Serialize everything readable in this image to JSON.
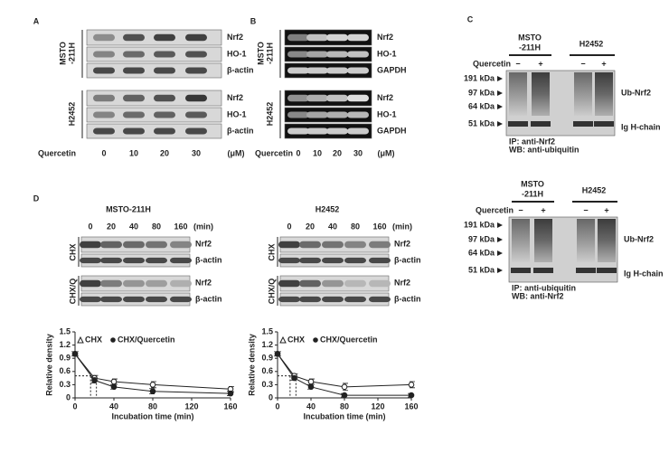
{
  "panel_a": {
    "label": "A",
    "groups": [
      {
        "cell_line": [
          "MSTO",
          "-211H"
        ],
        "bands": [
          "Nrf2",
          "HO-1",
          "β-actin"
        ]
      },
      {
        "cell_line": [
          "H2452"
        ],
        "bands": [
          "Nrf2",
          "HO-1",
          "β-actin"
        ]
      }
    ],
    "treatment": "Quercetin",
    "doses": [
      0,
      10,
      20,
      30
    ],
    "unit": "(μM)"
  },
  "panel_b": {
    "label": "B",
    "groups": [
      {
        "cell_line": [
          "MSTO",
          "-211H"
        ],
        "bands": [
          "Nrf2",
          "HO-1",
          "GAPDH"
        ]
      },
      {
        "cell_line": [
          "H2452"
        ],
        "bands": [
          "Nrf2",
          "HO-1",
          "GAPDH"
        ]
      }
    ],
    "treatment": "Quercetin",
    "doses": [
      0,
      10,
      20,
      30
    ],
    "unit": "(μM)"
  },
  "panel_c": {
    "label": "C",
    "blots": [
      {
        "cell_lines": [
          [
            "MSTO",
            "-211H"
          ],
          [
            "H2452"
          ]
        ],
        "treatment": "Quercetin",
        "signs": [
          "−",
          "+",
          "−",
          "+"
        ],
        "markers": [
          "191 kDa",
          "97 kDa",
          "64 kDa",
          "51 kDa"
        ],
        "bands": [
          "Ub-Nrf2",
          "Ig H-chain"
        ],
        "ip": "IP: anti-Nrf2",
        "wb": "WB: anti-ubiquitin"
      },
      {
        "cell_lines": [
          [
            "MSTO",
            "-211H"
          ],
          [
            "H2452"
          ]
        ],
        "treatment": "Quercetin",
        "signs": [
          "−",
          "+",
          "−",
          "+"
        ],
        "markers": [
          "191 kDa",
          "97 kDa",
          "64 kDa",
          "51 kDa"
        ],
        "bands": [
          "Ub-Nrf2",
          "Ig H-chain"
        ],
        "ip": "IP: anti-ubiquitin",
        "wb": "WB: anti-Nrf2"
      }
    ]
  },
  "panel_d": {
    "label": "D",
    "columns": [
      {
        "title": "MSTO-211H",
        "times": [
          0,
          20,
          40,
          80,
          160
        ],
        "unit": "(min)",
        "treatments": [
          "CHX",
          "CHX/Q"
        ],
        "bands": [
          "Nrf2",
          "β-actin"
        ]
      },
      {
        "title": "H2452",
        "times": [
          0,
          20,
          40,
          80,
          160
        ],
        "unit": "(min)",
        "treatments": [
          "CHX",
          "CHX/Q"
        ],
        "bands": [
          "Nrf2",
          "β-actin"
        ]
      }
    ]
  },
  "chart_data": [
    {
      "type": "line",
      "x": [
        0,
        20,
        40,
        80,
        160
      ],
      "series": [
        {
          "name": "CHX",
          "color": "#222222",
          "marker": "open",
          "values": [
            1.0,
            0.45,
            0.37,
            0.3,
            0.2
          ],
          "errors": [
            0.05,
            0.06,
            0.06,
            0.07,
            0.06
          ]
        },
        {
          "name": "CHX/Quercetin",
          "color": "#222222",
          "marker": "filled",
          "values": [
            1.0,
            0.4,
            0.25,
            0.15,
            0.1
          ],
          "errors": [
            0.05,
            0.06,
            0.05,
            0.06,
            0.05
          ]
        }
      ],
      "xlim": [
        0,
        160
      ],
      "ylim": [
        0,
        1.5
      ],
      "xticks": [
        0,
        40,
        80,
        120,
        160
      ],
      "yticks": [
        0,
        0.3,
        0.6,
        0.9,
        1.2,
        1.5
      ],
      "xlabel": "Incubation time (min)",
      "ylabel": "Relative density",
      "reference_y": 0.5,
      "reference_x": [
        16,
        22
      ]
    },
    {
      "type": "line",
      "x": [
        0,
        20,
        40,
        80,
        160
      ],
      "series": [
        {
          "name": "CHX",
          "color": "#222222",
          "marker": "open",
          "values": [
            1.0,
            0.5,
            0.37,
            0.25,
            0.3
          ],
          "errors": [
            0.05,
            0.05,
            0.06,
            0.08,
            0.07
          ]
        },
        {
          "name": "CHX/Quercetin",
          "color": "#222222",
          "marker": "filled",
          "values": [
            1.0,
            0.45,
            0.25,
            0.06,
            0.06
          ],
          "errors": [
            0.05,
            0.05,
            0.05,
            0.04,
            0.04
          ]
        }
      ],
      "xlim": [
        0,
        160
      ],
      "ylim": [
        0,
        1.5
      ],
      "xticks": [
        0,
        40,
        80,
        120,
        160
      ],
      "yticks": [
        0,
        0.3,
        0.6,
        0.9,
        1.2,
        1.5
      ],
      "xlabel": "Incubation time (min)",
      "ylabel": "Relative density",
      "reference_y": 0.5,
      "reference_x": [
        15,
        22
      ]
    }
  ]
}
